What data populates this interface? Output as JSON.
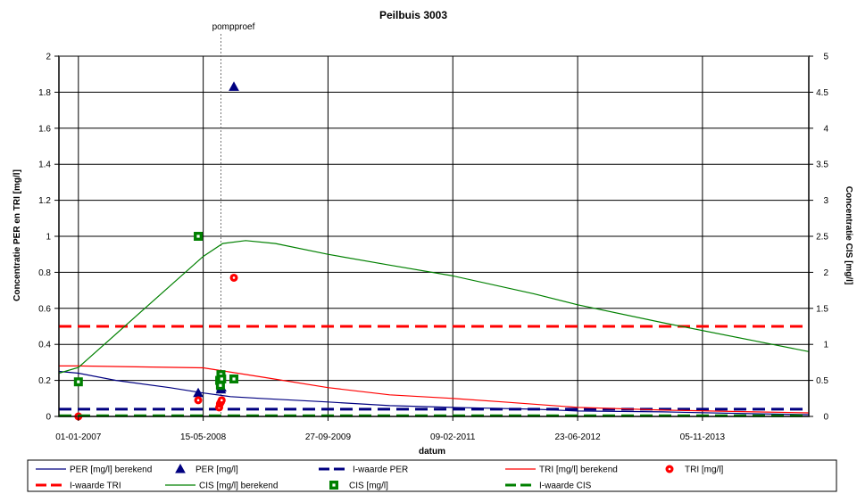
{
  "chart_data": {
    "type": "line",
    "title": "Peilbuis 3003",
    "xlabel": "datum",
    "ylabel_left": "Concentratie PER en TRI [mg/l]",
    "ylabel_right": "Concentratie CIS [mg/l]",
    "x_tick_labels": [
      "01-01-2007",
      "15-05-2008",
      "27-09-2009",
      "09-02-2011",
      "23-06-2012",
      "05-11-2013"
    ],
    "x_tick_dates": [
      "2007-01-01",
      "2008-05-15",
      "2009-09-27",
      "2011-02-09",
      "2012-06-23",
      "2013-11-05"
    ],
    "xlim": [
      "2006-10-15",
      "2015-01-05"
    ],
    "ylim_left": [
      0,
      2
    ],
    "y_ticks_left": [
      "0",
      "0.2",
      "0.4",
      "0.6",
      "0.8",
      "1",
      "1.2",
      "1.4",
      "1.6",
      "1.8",
      "2"
    ],
    "ylim_right": [
      0,
      5
    ],
    "y_ticks_right": [
      "0",
      "0.5",
      "1",
      "1.5",
      "2",
      "2.5",
      "3",
      "3.5",
      "4",
      "4.5",
      "5"
    ],
    "grid": true,
    "legend_position": "bottom",
    "annotation": {
      "text": "pompproef",
      "x": "2008-07-25"
    },
    "colors": {
      "per": "#000080",
      "tri": "#ff0000",
      "cis": "#008000",
      "grid": "#000000",
      "axis": "#808080"
    },
    "series": [
      {
        "name": "PER [mg/l] berekend",
        "kind": "line",
        "axis": "left",
        "x": [
          "2006-10-15",
          "2007-01-01",
          "2007-06-01",
          "2008-01-01",
          "2008-05-15",
          "2008-09-01",
          "2009-01-01",
          "2009-09-27",
          "2010-06-01",
          "2011-02-09",
          "2012-01-01",
          "2012-06-23",
          "2013-06-01",
          "2014-06-01",
          "2015-01-05"
        ],
        "y": [
          0.25,
          0.24,
          0.2,
          0.16,
          0.13,
          0.11,
          0.1,
          0.08,
          0.06,
          0.05,
          0.04,
          0.03,
          0.025,
          0.015,
          0.01
        ]
      },
      {
        "name": "PER [mg/l]",
        "kind": "triangle",
        "axis": "left",
        "x": [
          "2008-04-25",
          "2008-07-25",
          "2008-07-27",
          "2008-09-15"
        ],
        "y": [
          0.13,
          0.15,
          0.16,
          1.83
        ]
      },
      {
        "name": "I-waarde PER",
        "kind": "dash",
        "axis": "left",
        "x": [
          "2006-10-15",
          "2015-01-05"
        ],
        "y": [
          0.04,
          0.04
        ]
      },
      {
        "name": "TRI [mg/l] berekend",
        "kind": "line",
        "axis": "left",
        "x": [
          "2006-10-15",
          "2007-01-01",
          "2008-05-15",
          "2009-01-01",
          "2009-09-27",
          "2010-06-01",
          "2011-02-09",
          "2011-09-01",
          "2012-06-23",
          "2013-06-01",
          "2014-06-01",
          "2015-01-05"
        ],
        "y": [
          0.28,
          0.28,
          0.27,
          0.22,
          0.16,
          0.12,
          0.1,
          0.08,
          0.05,
          0.035,
          0.025,
          0.02
        ]
      },
      {
        "name": "TRI [mg/l]",
        "kind": "circle",
        "axis": "left",
        "x": [
          "2007-01-01",
          "2008-04-25",
          "2008-07-18",
          "2008-07-21",
          "2008-07-25",
          "2008-07-28",
          "2008-09-15"
        ],
        "y": [
          0.0,
          0.09,
          0.05,
          0.07,
          0.08,
          0.09,
          0.77
        ]
      },
      {
        "name": "I-waarde TRI",
        "kind": "dash",
        "axis": "left",
        "x": [
          "2006-10-15",
          "2015-01-05"
        ],
        "y": [
          0.5,
          0.5
        ]
      },
      {
        "name": "CIS [mg/l] berekend",
        "kind": "line",
        "axis": "right",
        "x": [
          "2006-10-15",
          "2007-01-01",
          "2008-05-15",
          "2008-08-01",
          "2008-11-01",
          "2009-03-01",
          "2009-09-27",
          "2010-06-01",
          "2011-02-09",
          "2012-01-01",
          "2012-06-23",
          "2013-06-01",
          "2014-06-01",
          "2015-01-05"
        ],
        "y": [
          0.6,
          0.68,
          2.22,
          2.4,
          2.44,
          2.4,
          2.25,
          2.1,
          1.95,
          1.7,
          1.55,
          1.3,
          1.05,
          0.9
        ]
      },
      {
        "name": "CIS [mg/l]",
        "kind": "square",
        "axis": "right",
        "x": [
          "2007-01-01",
          "2008-04-25",
          "2008-07-20",
          "2008-07-23",
          "2008-07-25",
          "2008-07-28",
          "2008-09-15"
        ],
        "y": [
          0.48,
          2.5,
          0.5,
          0.43,
          0.58,
          0.52,
          0.52
        ]
      },
      {
        "name": "I-waarde CIS",
        "kind": "dash",
        "axis": "right",
        "x": [
          "2006-10-15",
          "2015-01-05"
        ],
        "y": [
          0.01,
          0.01
        ]
      }
    ]
  }
}
